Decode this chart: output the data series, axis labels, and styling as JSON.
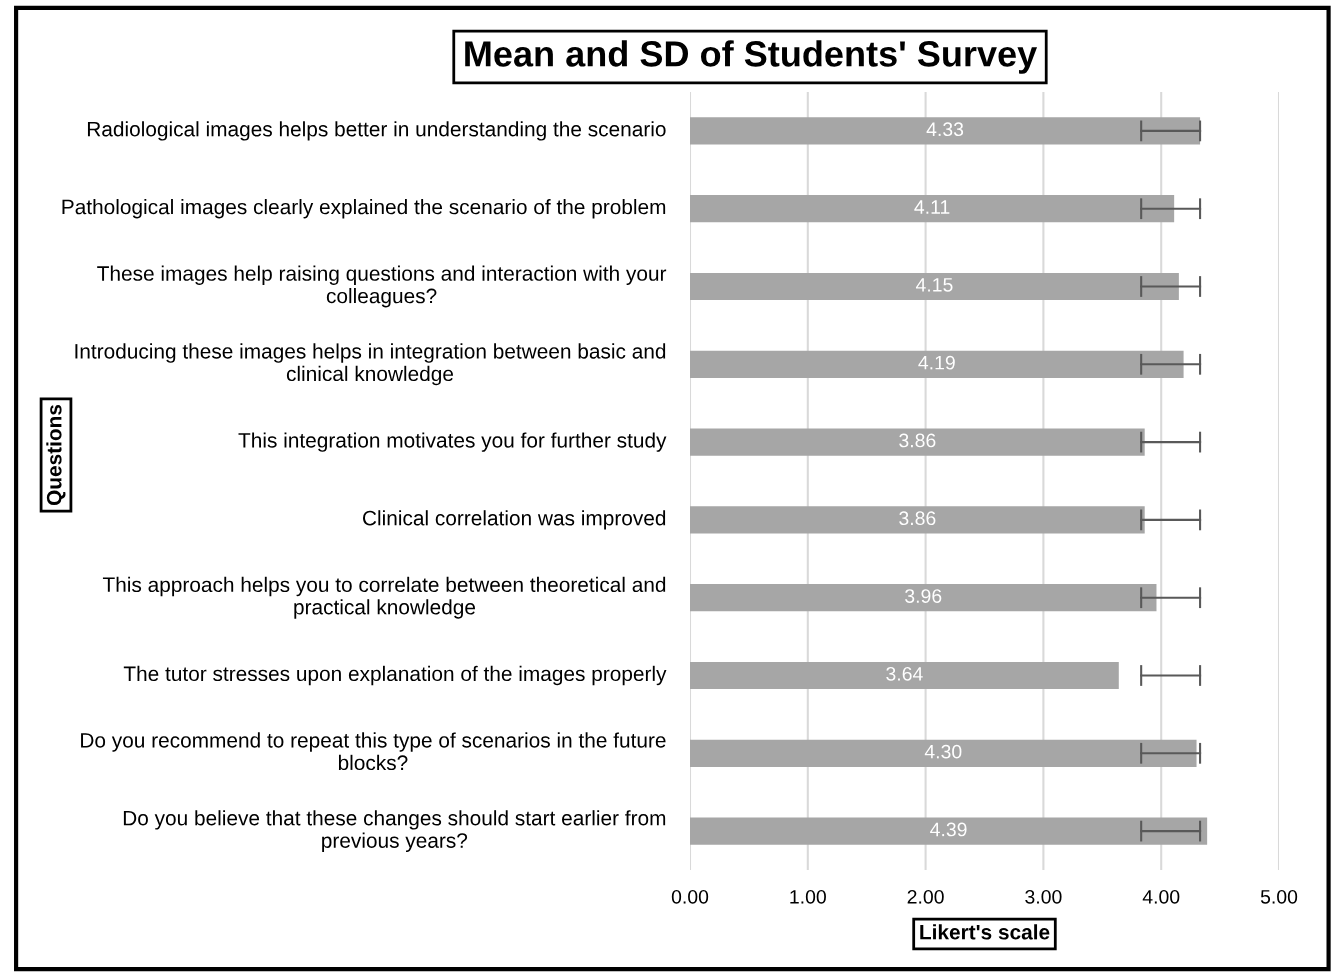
{
  "chart_data": {
    "type": "bar",
    "orientation": "horizontal",
    "title": "Mean and SD of Students' Survey",
    "xlabel": "Likert's scale",
    "ylabel": "Questions",
    "categories": [
      "Radiological images helps better in understanding the scenario",
      "Pathological images clearly explained the scenario of the problem",
      "These images help raising questions and interaction with your colleagues?",
      "Introducing these images helps in integration between basic and clinical knowledge",
      "This integration motivates you for further study",
      "Clinical correlation was improved",
      "This approach helps you to correlate between theoretical and practical knowledge",
      "The tutor stresses upon explanation of the images properly",
      "Do you recommend to repeat this type of scenarios in the future blocks?",
      "Do you believe that these changes should start earlier from previous years?"
    ],
    "values": [
      4.33,
      4.11,
      4.15,
      4.19,
      3.86,
      3.86,
      3.96,
      3.64,
      4.3,
      4.39
    ],
    "value_labels": [
      "4.33",
      "4.11",
      "4.15",
      "4.19",
      "3.86",
      "3.86",
      "3.96",
      "3.64",
      "4.30",
      "4.39"
    ],
    "errors": [
      [
        3.83,
        4.33
      ],
      [
        3.83,
        4.33
      ],
      [
        3.83,
        4.33
      ],
      [
        3.83,
        4.33
      ],
      [
        3.83,
        4.33
      ],
      [
        3.83,
        4.33
      ],
      [
        3.83,
        4.33
      ],
      [
        3.83,
        4.33
      ],
      [
        3.83,
        4.33
      ],
      [
        3.83,
        4.33
      ]
    ],
    "color": "#a6a6a6",
    "xlim": [
      0,
      5
    ],
    "xticks": [
      {
        "value": 0,
        "label": "0.00"
      },
      {
        "value": 1,
        "label": "1.00"
      },
      {
        "value": 2,
        "label": "2.00"
      },
      {
        "value": 3,
        "label": "3.00"
      },
      {
        "value": 4,
        "label": "4.00"
      },
      {
        "value": 5,
        "label": "5.00"
      }
    ],
    "grid": "x",
    "legend": false
  }
}
